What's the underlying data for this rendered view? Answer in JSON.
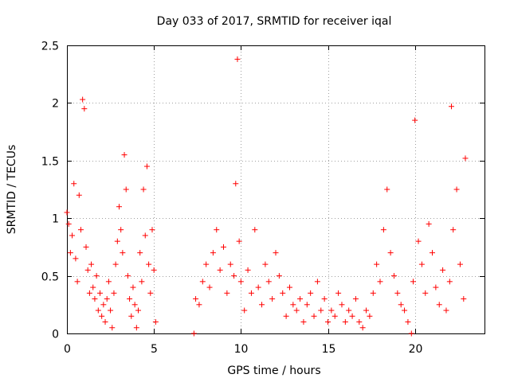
{
  "chart_data": {
    "type": "scatter",
    "title": "Day 033 of 2017, SRMTID for receiver iqal",
    "xlabel": "GPS time / hours",
    "ylabel": "SRMTID / TECUs",
    "xlim": [
      0,
      24
    ],
    "ylim": [
      0,
      2.5
    ],
    "xticks": [
      0,
      5,
      10,
      15,
      20
    ],
    "xtick_labels": [
      "0",
      "5",
      "10",
      "15",
      "20"
    ],
    "yticks": [
      0,
      0.5,
      1,
      1.5,
      2,
      2.5
    ],
    "ytick_labels": [
      "0",
      "0.5",
      "1",
      "1.5",
      "2",
      "2.5"
    ],
    "grid": true,
    "marker": "+",
    "series": [
      {
        "name": "SRMTID iqal",
        "color": "#ff0000",
        "x": [
          0.0,
          0.1,
          0.2,
          0.3,
          0.4,
          0.5,
          0.6,
          0.7,
          0.8,
          0.9,
          1.0,
          1.1,
          1.2,
          1.3,
          1.4,
          1.5,
          1.6,
          1.7,
          1.8,
          1.9,
          2.0,
          2.1,
          2.2,
          2.3,
          2.4,
          2.5,
          2.6,
          2.7,
          2.8,
          2.9,
          3.0,
          3.1,
          3.2,
          3.3,
          3.4,
          3.5,
          3.6,
          3.7,
          3.8,
          3.9,
          4.0,
          4.1,
          4.2,
          4.3,
          4.4,
          4.5,
          4.6,
          4.7,
          4.8,
          4.9,
          5.0,
          5.1,
          7.3,
          7.4,
          7.6,
          7.8,
          8.0,
          8.2,
          8.4,
          8.6,
          8.8,
          9.0,
          9.2,
          9.4,
          9.6,
          9.7,
          9.8,
          9.9,
          10.0,
          10.2,
          10.4,
          10.6,
          10.8,
          11.0,
          11.2,
          11.4,
          11.6,
          11.8,
          12.0,
          12.2,
          12.4,
          12.6,
          12.8,
          13.0,
          13.2,
          13.4,
          13.6,
          13.8,
          14.0,
          14.2,
          14.4,
          14.6,
          14.8,
          15.0,
          15.2,
          15.4,
          15.6,
          15.8,
          16.0,
          16.2,
          16.4,
          16.6,
          16.8,
          17.0,
          17.2,
          17.4,
          17.6,
          17.8,
          18.0,
          18.2,
          18.4,
          18.6,
          18.8,
          19.0,
          19.2,
          19.4,
          19.6,
          19.8,
          19.9,
          20.0,
          20.2,
          20.4,
          20.6,
          20.8,
          21.0,
          21.2,
          21.4,
          21.6,
          21.8,
          22.0,
          22.1,
          22.2,
          22.4,
          22.6,
          22.8,
          22.9
        ],
        "y": [
          1.05,
          0.95,
          0.7,
          0.85,
          1.3,
          0.65,
          0.45,
          1.2,
          0.9,
          2.03,
          1.95,
          0.75,
          0.55,
          0.35,
          0.6,
          0.4,
          0.3,
          0.5,
          0.2,
          0.35,
          0.15,
          0.25,
          0.1,
          0.3,
          0.45,
          0.2,
          0.05,
          0.35,
          0.6,
          0.8,
          1.1,
          0.9,
          0.7,
          1.55,
          1.25,
          0.5,
          0.3,
          0.15,
          0.4,
          0.25,
          0.05,
          0.2,
          0.7,
          0.45,
          1.25,
          0.85,
          1.45,
          0.6,
          0.35,
          0.9,
          0.55,
          0.1,
          0.0,
          0.3,
          0.25,
          0.45,
          0.6,
          0.4,
          0.7,
          0.9,
          0.55,
          0.75,
          0.35,
          0.6,
          0.5,
          1.3,
          2.38,
          0.8,
          0.45,
          0.2,
          0.55,
          0.35,
          0.9,
          0.4,
          0.25,
          0.6,
          0.45,
          0.3,
          0.7,
          0.5,
          0.35,
          0.15,
          0.4,
          0.25,
          0.2,
          0.3,
          0.1,
          0.25,
          0.35,
          0.15,
          0.45,
          0.2,
          0.3,
          0.1,
          0.2,
          0.15,
          0.35,
          0.25,
          0.1,
          0.2,
          0.15,
          0.3,
          0.1,
          0.05,
          0.2,
          0.15,
          0.35,
          0.6,
          0.45,
          0.9,
          1.25,
          0.7,
          0.5,
          0.35,
          0.25,
          0.2,
          0.1,
          0.0,
          0.45,
          1.85,
          0.8,
          0.6,
          0.35,
          0.95,
          0.7,
          0.4,
          0.25,
          0.55,
          0.2,
          0.45,
          1.97,
          0.9,
          1.25,
          0.6,
          0.3,
          1.52
        ]
      }
    ]
  }
}
